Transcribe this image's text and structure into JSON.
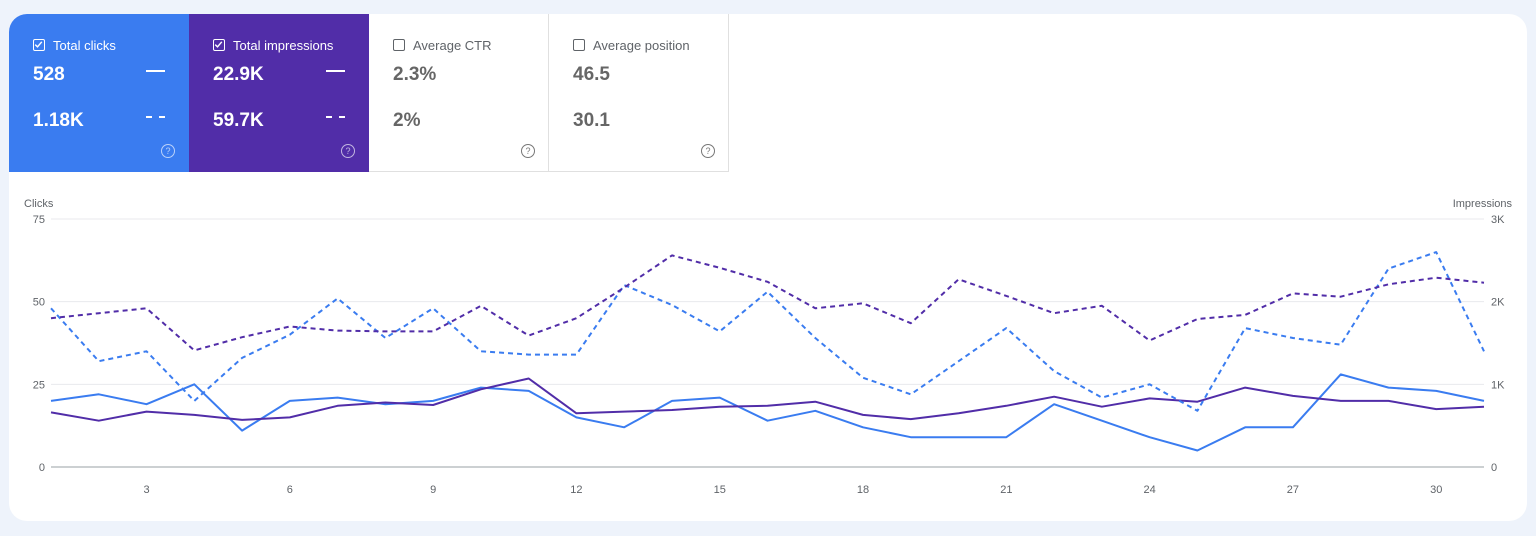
{
  "metrics": [
    {
      "label": "Total clicks",
      "checked": true,
      "current": "528",
      "previous": "1.18K",
      "help": "?"
    },
    {
      "label": "Total impressions",
      "checked": true,
      "current": "22.9K",
      "previous": "59.7K",
      "help": "?"
    },
    {
      "label": "Average CTR",
      "checked": false,
      "current": "2.3%",
      "previous": "2%",
      "help": "?"
    },
    {
      "label": "Average position",
      "checked": false,
      "current": "46.5",
      "previous": "30.1",
      "help": "?"
    }
  ],
  "colors": {
    "clicks": "#3a7cf0",
    "impressions": "#512da8",
    "grid": "#e8eaed"
  },
  "chart_data": {
    "type": "line",
    "ylabel_left": "Clicks",
    "ylabel_right": "Impressions",
    "ylim_left": [
      0,
      75
    ],
    "ylim_right": [
      0,
      3000
    ],
    "yticks_left": [
      "0",
      "25",
      "50",
      "75"
    ],
    "yticks_right": [
      "0",
      "1K",
      "2K",
      "3K"
    ],
    "x": [
      1,
      2,
      3,
      4,
      5,
      6,
      7,
      8,
      9,
      10,
      11,
      12,
      13,
      14,
      15,
      16,
      17,
      18,
      19,
      20,
      21,
      22,
      23,
      24,
      25,
      26,
      27,
      28,
      29,
      30,
      31
    ],
    "xticks": [
      "3",
      "6",
      "9",
      "12",
      "15",
      "18",
      "21",
      "24",
      "27",
      "30"
    ],
    "grid": true,
    "series": [
      {
        "metric": "clicks",
        "period": "current",
        "axis": "left",
        "style": "solid",
        "values": [
          20,
          22,
          19,
          25,
          11,
          20,
          21,
          19,
          20,
          24,
          23,
          15,
          12,
          20,
          21,
          14,
          17,
          12,
          9,
          9,
          9,
          19,
          14,
          9,
          5,
          12,
          12,
          28,
          24,
          23,
          20
        ]
      },
      {
        "metric": "impressions",
        "period": "current",
        "axis": "right",
        "style": "solid",
        "values": [
          660,
          560,
          670,
          630,
          570,
          600,
          740,
          780,
          750,
          940,
          1070,
          650,
          670,
          690,
          730,
          740,
          790,
          630,
          580,
          650,
          740,
          850,
          730,
          830,
          790,
          960,
          860,
          800,
          800,
          700,
          730
        ]
      },
      {
        "metric": "clicks",
        "period": "previous",
        "axis": "left",
        "style": "dashed",
        "values": [
          48,
          32,
          35,
          20,
          33,
          40,
          51,
          39,
          48,
          35,
          34,
          34,
          55,
          49,
          41,
          53,
          39,
          27,
          22,
          32,
          42,
          29,
          21,
          25,
          17,
          42,
          39,
          37,
          60,
          65,
          35
        ]
      },
      {
        "metric": "impressions",
        "period": "previous",
        "axis": "right",
        "style": "dashed",
        "values": [
          1800,
          1860,
          1920,
          1410,
          1570,
          1700,
          1650,
          1640,
          1640,
          1950,
          1590,
          1800,
          2170,
          2560,
          2410,
          2240,
          1920,
          1980,
          1740,
          2270,
          2070,
          1860,
          1950,
          1530,
          1790,
          1840,
          2100,
          2060,
          2210,
          2290,
          2230
        ]
      }
    ]
  }
}
